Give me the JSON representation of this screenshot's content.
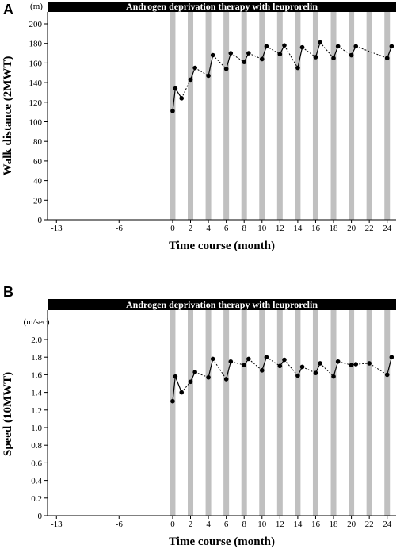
{
  "chart_data": [
    {
      "panel": "A",
      "type": "line",
      "banner": "Androgen deprivation therapy with leuprorelin",
      "ylabel": "Walk distance (2MWT)",
      "yunit": "(m)",
      "xlabel": "Time course (month)",
      "xlim": [
        -14,
        25
      ],
      "ylim": [
        0,
        210
      ],
      "yticks": [
        0,
        20,
        40,
        60,
        80,
        100,
        120,
        140,
        160,
        180,
        200
      ],
      "xticks": [
        -13,
        -6,
        0,
        2,
        4,
        6,
        8,
        10,
        12,
        14,
        16,
        18,
        20,
        22,
        24
      ],
      "injection_months": [
        0,
        2,
        4,
        6,
        8,
        10,
        12,
        14,
        16,
        18,
        20,
        22,
        24
      ],
      "grid": false,
      "series": [
        {
          "x": [
            0,
            0.3,
            1,
            2,
            2.5,
            4,
            4.5,
            6,
            6.5,
            8,
            8.5,
            10,
            10.5,
            12,
            12.5,
            14,
            14.5,
            16,
            16.5,
            18,
            18.5,
            20,
            20.5,
            24,
            24.5
          ],
          "y": [
            111,
            134,
            124,
            143,
            155,
            147,
            168,
            154,
            170,
            161,
            170,
            164,
            177,
            169,
            178,
            155,
            176,
            166,
            181,
            165,
            177,
            168,
            177,
            165,
            177
          ]
        }
      ]
    },
    {
      "panel": "B",
      "type": "line",
      "banner": "Androgen deprivation therapy with leuprorelin",
      "ylabel": "Speed (10MWT)",
      "yunit": "(m/sec)",
      "xlabel": "Time course (month)",
      "xlim": [
        -14,
        25
      ],
      "ylim": [
        0,
        2.2
      ],
      "yticks": [
        "0",
        "0.2",
        "0.4",
        "0.6",
        "0.8",
        "1.0",
        "1.2",
        "1.4",
        "1.6",
        "1.8",
        "2.0"
      ],
      "xticks": [
        -13,
        -6,
        0,
        2,
        4,
        6,
        8,
        10,
        12,
        14,
        16,
        18,
        20,
        22,
        24
      ],
      "injection_months": [
        0,
        2,
        4,
        6,
        8,
        10,
        12,
        14,
        16,
        18,
        20,
        22,
        24
      ],
      "grid": false,
      "series": [
        {
          "x": [
            0,
            0.3,
            1,
            2,
            2.5,
            4,
            4.5,
            6,
            6.5,
            8,
            8.5,
            10,
            10.5,
            12,
            12.5,
            14,
            14.5,
            16,
            16.5,
            18,
            18.5,
            20,
            20.5,
            22,
            24,
            24.5
          ],
          "y": [
            1.3,
            1.58,
            1.4,
            1.52,
            1.63,
            1.57,
            1.78,
            1.55,
            1.75,
            1.71,
            1.78,
            1.65,
            1.8,
            1.7,
            1.77,
            1.59,
            1.69,
            1.62,
            1.73,
            1.58,
            1.75,
            1.71,
            1.72,
            1.73,
            1.6,
            1.8
          ]
        }
      ]
    }
  ]
}
